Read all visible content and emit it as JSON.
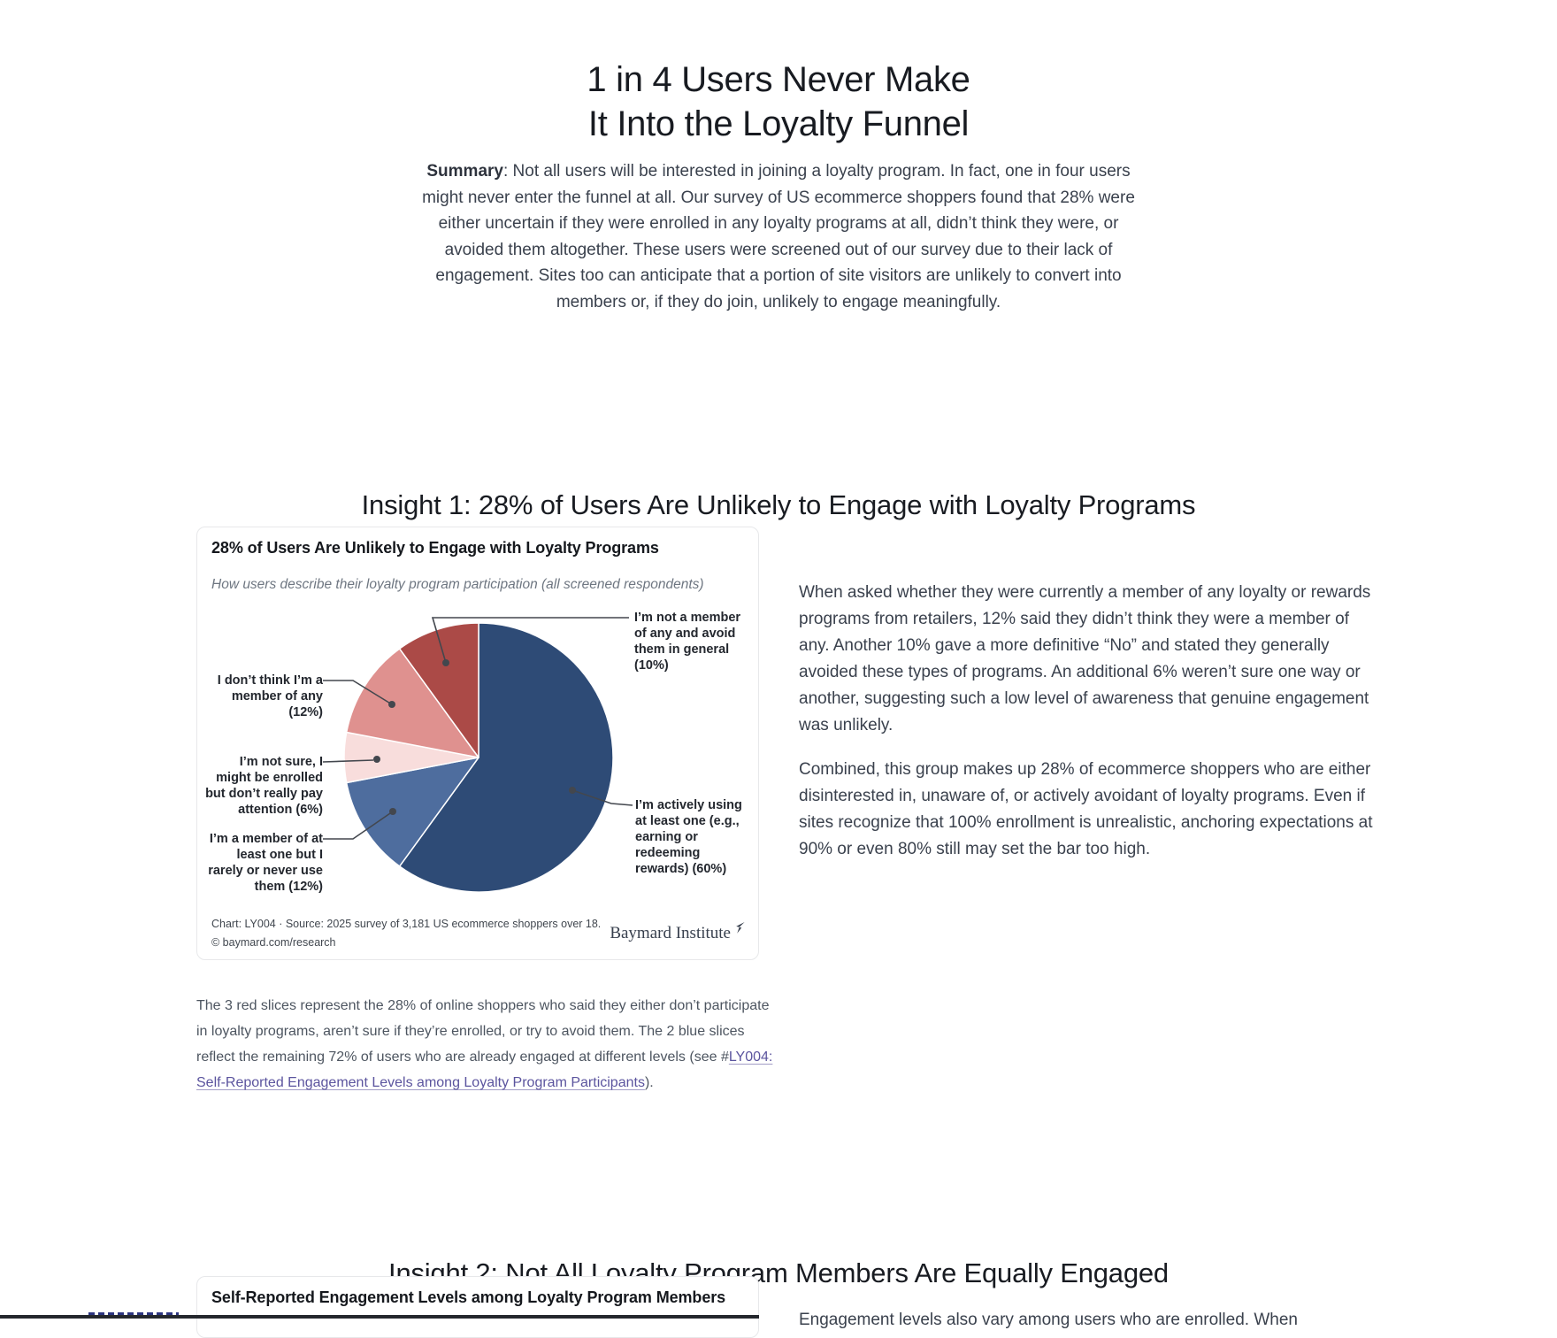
{
  "page": {
    "title": "1 in 4 Users Never Make\nIt Into the Loyalty Funnel",
    "summary_label": "Summary",
    "summary_body": ": Not all users will be interested in joining a loyalty program. In fact, one in four users might never enter the funnel at all. Our survey of US ecommerce shoppers found that 28% were either uncertain if they were enrolled in any loyalty programs at all, didn’t think they were, or avoided them altogether. These users were screened out of our survey due to their lack of engagement. Sites too can anticipate that a portion of site visitors are unlikely to convert into members or, if they do join, unlikely to engage meaningfully."
  },
  "insight1": {
    "heading": "Insight 1: 28% of Users Are Unlikely to Engage with Loyalty Programs",
    "paragraph1": "When asked whether they were currently a member of any loyalty or rewards programs from retailers, 12% said they didn’t think they were a member of any. Another 10% gave a more definitive “No” and stated they generally avoided these types of programs. An additional 6% weren’t sure one way or another, suggesting such a low level of awareness that genuine engagement was unlikely.",
    "paragraph2": "Combined, this group makes up 28% of ecommerce shoppers who are either disinterested in, unaware of, or actively avoidant of loyalty programs. Even if sites recognize that 100% enrollment is unrealistic, anchoring expectations at 90% or even 80% still may set the bar too high.",
    "caption_before_link": "The 3 red slices represent the 28% of online shoppers who said they either don’t participate in loyalty programs, aren’t sure if they’re enrolled, or try to avoid them. The 2 blue slices reflect the remaining 72% of users who are already engaged at different levels (see #",
    "caption_link": "LY004: Self-Reported Engagement Levels among Loyalty Program Participants",
    "caption_after_link": ")."
  },
  "chart_card": {
    "title": "28% of Users Are Unlikely to Engage with Loyalty Programs",
    "subtitle": "How users describe their loyalty program participation (all screened respondents)",
    "callouts": {
      "avoid": "I’m not a member\nof any and avoid\nthem in general\n(10%)",
      "dont_think": "I don’t think I’m a\nmember of any\n(12%)",
      "not_sure": "I’m not sure, I\nmight be enrolled\nbut don’t really pay\nattention (6%)",
      "rarely": "I’m a member of at\nleast one but I\nrarely or never use\nthem (12%)",
      "active": "I’m actively using\nat least one (e.g.,\nearning or\nredeeming\nrewards) (60%)"
    },
    "source_line": "Chart: LY004 · Source: 2025 survey of 3,181 US ecommerce shoppers over 18.",
    "copyright_line": "© baymard.com/research",
    "brand": "Baymard Institute"
  },
  "chart_data": {
    "type": "pie",
    "title": "28% of Users Are Unlikely to Engage with Loyalty Programs",
    "subtitle": "How users describe their loyalty program participation (all screened respondents)",
    "unit": "%",
    "slices": [
      {
        "label": "I’m actively using at least one (e.g., earning or redeeming rewards)",
        "value": 60,
        "color": "#2e4b76"
      },
      {
        "label": "I’m a member of at least one but I rarely or never use them",
        "value": 12,
        "color": "#4e6d9e"
      },
      {
        "label": "I’m not sure, I might be enrolled but don’t really pay attention",
        "value": 6,
        "color": "#f8dddc"
      },
      {
        "label": "I don’t think I’m a member of any",
        "value": 12,
        "color": "#df918f"
      },
      {
        "label": "I’m not a member of any and avoid them in general",
        "value": 10,
        "color": "#ab4a47"
      }
    ],
    "source": "Chart: LY004 · Source: 2025 survey of 3,181 US ecommerce shoppers over 18.",
    "copyright": "© baymard.com/research"
  },
  "insight2": {
    "heading": "Insight 2: Not All Loyalty Program Members Are Equally Engaged",
    "card_title": "Self-Reported Engagement Levels among Loyalty Program Members",
    "paragraph_visible": "Engagement levels also vary among users who are enrolled. When"
  },
  "colors": {
    "link": "#5b549e",
    "body_text": "#3a414d",
    "heading": "#181b21",
    "card_border": "#e7e8ea"
  }
}
